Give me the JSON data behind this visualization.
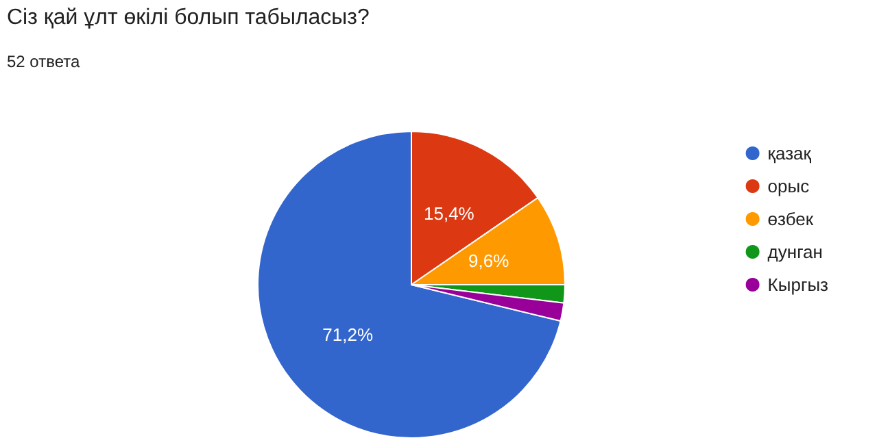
{
  "chart_data": {
    "type": "pie",
    "title": "Сіз қай ұлт өкілі болып табыласыз?",
    "subtitle": "52 ответа",
    "categories": [
      "қазақ",
      "орыс",
      "өзбек",
      "дунган",
      "Кыргыз"
    ],
    "values": [
      71.2,
      15.4,
      9.6,
      1.9,
      1.9
    ],
    "colors": [
      "#3366cc",
      "#dc3912",
      "#ff9900",
      "#109618",
      "#990099"
    ],
    "value_labels": [
      "71,2%",
      "15,4%",
      "9,6%",
      null,
      null
    ],
    "legend": "right"
  }
}
